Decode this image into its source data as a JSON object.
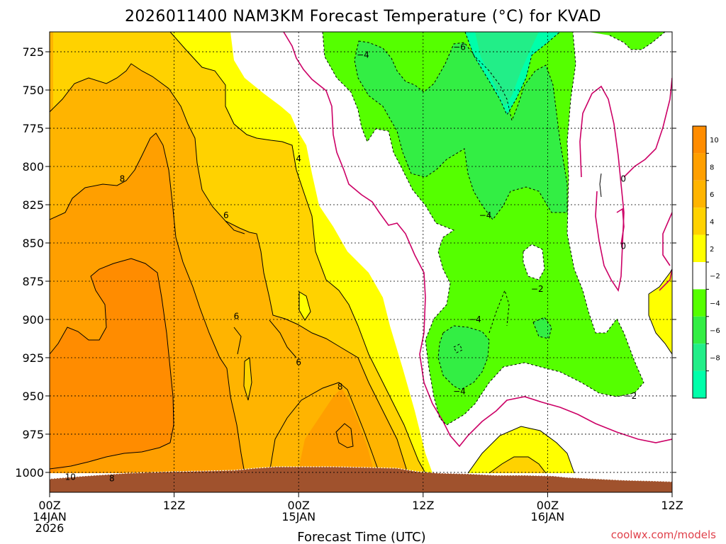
{
  "chart_data": {
    "type": "heatmap",
    "title": "2026011400 NAM3KM Forecast Temperature (°C) for KVAD",
    "xlabel": "Forecast Time (UTC)",
    "ylabel": "",
    "credit": "coolwx.com/models",
    "y_axis": {
      "values": [
        725,
        750,
        775,
        800,
        825,
        850,
        875,
        900,
        925,
        950,
        975,
        1000
      ],
      "labels": [
        "725",
        "750",
        "775",
        "800",
        "825",
        "850",
        "875",
        "900",
        "925",
        "950",
        "975",
        "1000"
      ],
      "range": [
        712,
        1013
      ]
    },
    "x_axis": {
      "values": [
        0,
        12,
        24,
        36,
        48,
        60
      ],
      "labels": [
        [
          "00Z",
          "14JAN",
          "2026"
        ],
        [
          "12Z"
        ],
        [
          "00Z",
          "15JAN"
        ],
        [
          "12Z"
        ],
        [
          "00Z",
          "16JAN"
        ],
        [
          "12Z"
        ]
      ],
      "range": [
        0,
        60
      ]
    },
    "colorbar": {
      "ticks": [
        "10",
        "8",
        "6",
        "4",
        "2",
        "−2",
        "−4",
        "−6",
        "−8"
      ],
      "bins": [
        {
          "from": 10,
          "to": 12,
          "color": "#ff8c00"
        },
        {
          "from": 8,
          "to": 10,
          "color": "#ff9f00"
        },
        {
          "from": 6,
          "to": 8,
          "color": "#ffb400"
        },
        {
          "from": 4,
          "to": 6,
          "color": "#ffd200"
        },
        {
          "from": 2,
          "to": 4,
          "color": "#ffff00"
        },
        {
          "from": -2,
          "to": 2,
          "color": "#ffffff"
        },
        {
          "from": -4,
          "to": -2,
          "color": "#55ff00"
        },
        {
          "from": -6,
          "to": -4,
          "color": "#33ee44"
        },
        {
          "from": -8,
          "to": -6,
          "color": "#22ee88"
        },
        {
          "from": -10,
          "to": -8,
          "color": "#00ffaa"
        }
      ]
    },
    "contour_labels": [
      {
        "text": "−4",
        "t": 30.2,
        "p": 727
      },
      {
        "text": "−6",
        "t": 39.5,
        "p": 722
      },
      {
        "text": "0",
        "t": 55.3,
        "p": 808
      },
      {
        "text": "0",
        "t": 55.3,
        "p": 852
      },
      {
        "text": "4",
        "t": 24.0,
        "p": 795
      },
      {
        "text": "8",
        "t": 7.0,
        "p": 808
      },
      {
        "text": "6",
        "t": 17.0,
        "p": 832
      },
      {
        "text": "−4",
        "t": 42.0,
        "p": 832
      },
      {
        "text": "−2",
        "t": 47.0,
        "p": 880
      },
      {
        "text": "6",
        "t": 18.0,
        "p": 898
      },
      {
        "text": "−4",
        "t": 41.0,
        "p": 900
      },
      {
        "text": "6",
        "t": 24.0,
        "p": 928
      },
      {
        "text": "8",
        "t": 28.0,
        "p": 944
      },
      {
        "text": "−4",
        "t": 39.5,
        "p": 947
      },
      {
        "text": "−2",
        "t": 56.0,
        "p": 950
      },
      {
        "text": "10",
        "t": 2.0,
        "p": 1003
      },
      {
        "text": "8",
        "t": 6.0,
        "p": 1004
      }
    ]
  }
}
